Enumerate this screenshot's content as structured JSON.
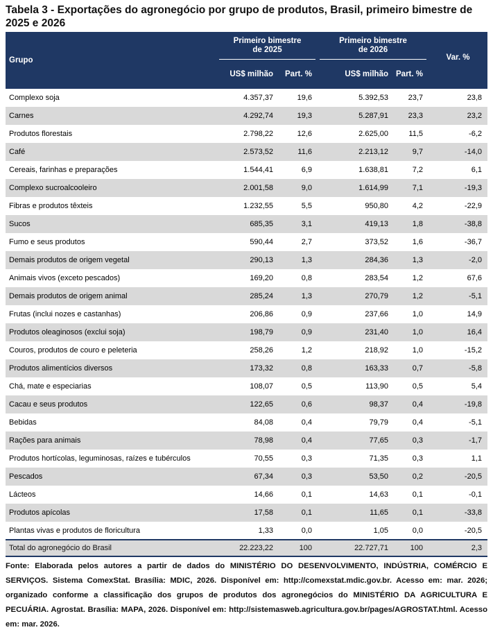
{
  "page": {
    "title": "Tabela 3 - Exportações do agronegócio por grupo de produtos, Brasil, primeiro bimestre de 2025 e 2026"
  },
  "table": {
    "headers": {
      "grupo": "Grupo",
      "period_2025": "Primeiro bimestre de 2025",
      "period_2026": "Primeiro bimestre de 2026",
      "var": "Var. %",
      "usd": "US$ milhão",
      "part": "Part. %"
    },
    "rows": [
      {
        "grupo": "Complexo soja",
        "usd_2025": "4.357,37",
        "part_2025": "19,6",
        "usd_2026": "5.392,53",
        "part_2026": "23,7",
        "var": "23,8"
      },
      {
        "grupo": "Carnes",
        "usd_2025": "4.292,74",
        "part_2025": "19,3",
        "usd_2026": "5.287,91",
        "part_2026": "23,3",
        "var": "23,2"
      },
      {
        "grupo": "Produtos florestais",
        "usd_2025": "2.798,22",
        "part_2025": "12,6",
        "usd_2026": "2.625,00",
        "part_2026": "11,5",
        "var": "-6,2"
      },
      {
        "grupo": "Café",
        "usd_2025": "2.573,52",
        "part_2025": "11,6",
        "usd_2026": "2.213,12",
        "part_2026": "9,7",
        "var": "-14,0"
      },
      {
        "grupo": "Cereais, farinhas e preparações",
        "usd_2025": "1.544,41",
        "part_2025": "6,9",
        "usd_2026": "1.638,81",
        "part_2026": "7,2",
        "var": "6,1"
      },
      {
        "grupo": "Complexo sucroalcooleiro",
        "usd_2025": "2.001,58",
        "part_2025": "9,0",
        "usd_2026": "1.614,99",
        "part_2026": "7,1",
        "var": "-19,3"
      },
      {
        "grupo": "Fibras e produtos têxteis",
        "usd_2025": "1.232,55",
        "part_2025": "5,5",
        "usd_2026": "950,80",
        "part_2026": "4,2",
        "var": "-22,9"
      },
      {
        "grupo": "Sucos",
        "usd_2025": "685,35",
        "part_2025": "3,1",
        "usd_2026": "419,13",
        "part_2026": "1,8",
        "var": "-38,8"
      },
      {
        "grupo": "Fumo e seus produtos",
        "usd_2025": "590,44",
        "part_2025": "2,7",
        "usd_2026": "373,52",
        "part_2026": "1,6",
        "var": "-36,7"
      },
      {
        "grupo": "Demais produtos de origem vegetal",
        "usd_2025": "290,13",
        "part_2025": "1,3",
        "usd_2026": "284,36",
        "part_2026": "1,3",
        "var": "-2,0"
      },
      {
        "grupo": "Animais vivos (exceto pescados)",
        "usd_2025": "169,20",
        "part_2025": "0,8",
        "usd_2026": "283,54",
        "part_2026": "1,2",
        "var": "67,6"
      },
      {
        "grupo": "Demais produtos de origem animal",
        "usd_2025": "285,24",
        "part_2025": "1,3",
        "usd_2026": "270,79",
        "part_2026": "1,2",
        "var": "-5,1"
      },
      {
        "grupo": "Frutas (inclui nozes e castanhas)",
        "usd_2025": "206,86",
        "part_2025": "0,9",
        "usd_2026": "237,66",
        "part_2026": "1,0",
        "var": "14,9"
      },
      {
        "grupo": "Produtos oleaginosos (exclui soja)",
        "usd_2025": "198,79",
        "part_2025": "0,9",
        "usd_2026": "231,40",
        "part_2026": "1,0",
        "var": "16,4"
      },
      {
        "grupo": "Couros, produtos de couro e peleteria",
        "usd_2025": "258,26",
        "part_2025": "1,2",
        "usd_2026": "218,92",
        "part_2026": "1,0",
        "var": "-15,2"
      },
      {
        "grupo": "Produtos alimentícios diversos",
        "usd_2025": "173,32",
        "part_2025": "0,8",
        "usd_2026": "163,33",
        "part_2026": "0,7",
        "var": "-5,8"
      },
      {
        "grupo": "Chá, mate e especiarias",
        "usd_2025": "108,07",
        "part_2025": "0,5",
        "usd_2026": "113,90",
        "part_2026": "0,5",
        "var": "5,4"
      },
      {
        "grupo": "Cacau e seus produtos",
        "usd_2025": "122,65",
        "part_2025": "0,6",
        "usd_2026": "98,37",
        "part_2026": "0,4",
        "var": "-19,8"
      },
      {
        "grupo": "Bebidas",
        "usd_2025": "84,08",
        "part_2025": "0,4",
        "usd_2026": "79,79",
        "part_2026": "0,4",
        "var": "-5,1"
      },
      {
        "grupo": "Rações para animais",
        "usd_2025": "78,98",
        "part_2025": "0,4",
        "usd_2026": "77,65",
        "part_2026": "0,3",
        "var": "-1,7"
      },
      {
        "grupo": "Produtos hortícolas, leguminosas, raízes e tubérculos",
        "usd_2025": "70,55",
        "part_2025": "0,3",
        "usd_2026": "71,35",
        "part_2026": "0,3",
        "var": "1,1"
      },
      {
        "grupo": "Pescados",
        "usd_2025": "67,34",
        "part_2025": "0,3",
        "usd_2026": "53,50",
        "part_2026": "0,2",
        "var": "-20,5"
      },
      {
        "grupo": "Lácteos",
        "usd_2025": "14,66",
        "part_2025": "0,1",
        "usd_2026": "14,63",
        "part_2026": "0,1",
        "var": "-0,1"
      },
      {
        "grupo": "Produtos apícolas",
        "usd_2025": "17,58",
        "part_2025": "0,1",
        "usd_2026": "11,65",
        "part_2026": "0,1",
        "var": "-33,8"
      },
      {
        "grupo": "Plantas vivas e produtos de floricultura",
        "usd_2025": "1,33",
        "part_2025": "0,0",
        "usd_2026": "1,05",
        "part_2026": "0,0",
        "var": "-20,5"
      }
    ],
    "total": {
      "grupo": "Total do agronegócio do Brasil",
      "usd_2025": "22.223,22",
      "part_2025": "100",
      "usd_2026": "22.727,71",
      "part_2026": "100",
      "var": "2,3"
    }
  },
  "source_note": "Fonte: Elaborada pelos autores a partir de dados do MINISTÉRIO DO DESENVOLVIMENTO, INDÚSTRIA, COMÉRCIO E SERVIÇOS. Sistema ComexStat. Brasília: MDIC, 2026. Disponível em: http://comexstat.mdic.gov.br. Acesso em: mar. 2026; organizado conforme a classificação dos grupos de produtos dos agronegócios do MINISTÉRIO DA AGRICULTURA E PECUÁRIA. Agrostat. Brasília: MAPA, 2026. Disponível em: http://sistemasweb.agricultura.gov.br/pages/AGROSTAT.html. Acesso em: mar. 2026.",
  "colors": {
    "header_bg": "#1f3864",
    "alt_row_bg": "#d9d9d9",
    "total_border": "#1f3864",
    "text": "#111111"
  }
}
